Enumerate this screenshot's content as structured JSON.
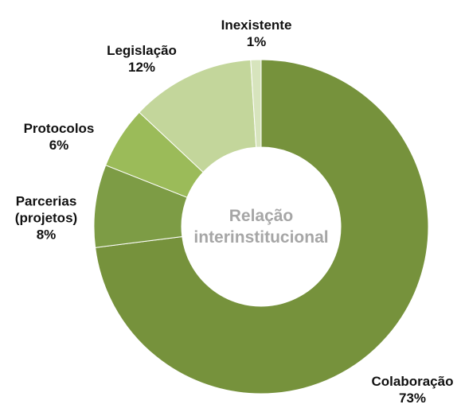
{
  "chart_data": {
    "type": "pie",
    "donut": true,
    "center_label": "Relação interinstitucional",
    "categories": [
      "Colaboração",
      "Parcerias (projetos)",
      "Protocolos",
      "Legislação",
      "Inexistente"
    ],
    "values": [
      73,
      8,
      6,
      12,
      1
    ],
    "value_labels": [
      "73%",
      "8%",
      "6%",
      "12%",
      "1%"
    ],
    "colors": [
      "#76923c",
      "#7d9c45",
      "#9bbb59",
      "#c3d69b",
      "#d7e4bd"
    ]
  }
}
